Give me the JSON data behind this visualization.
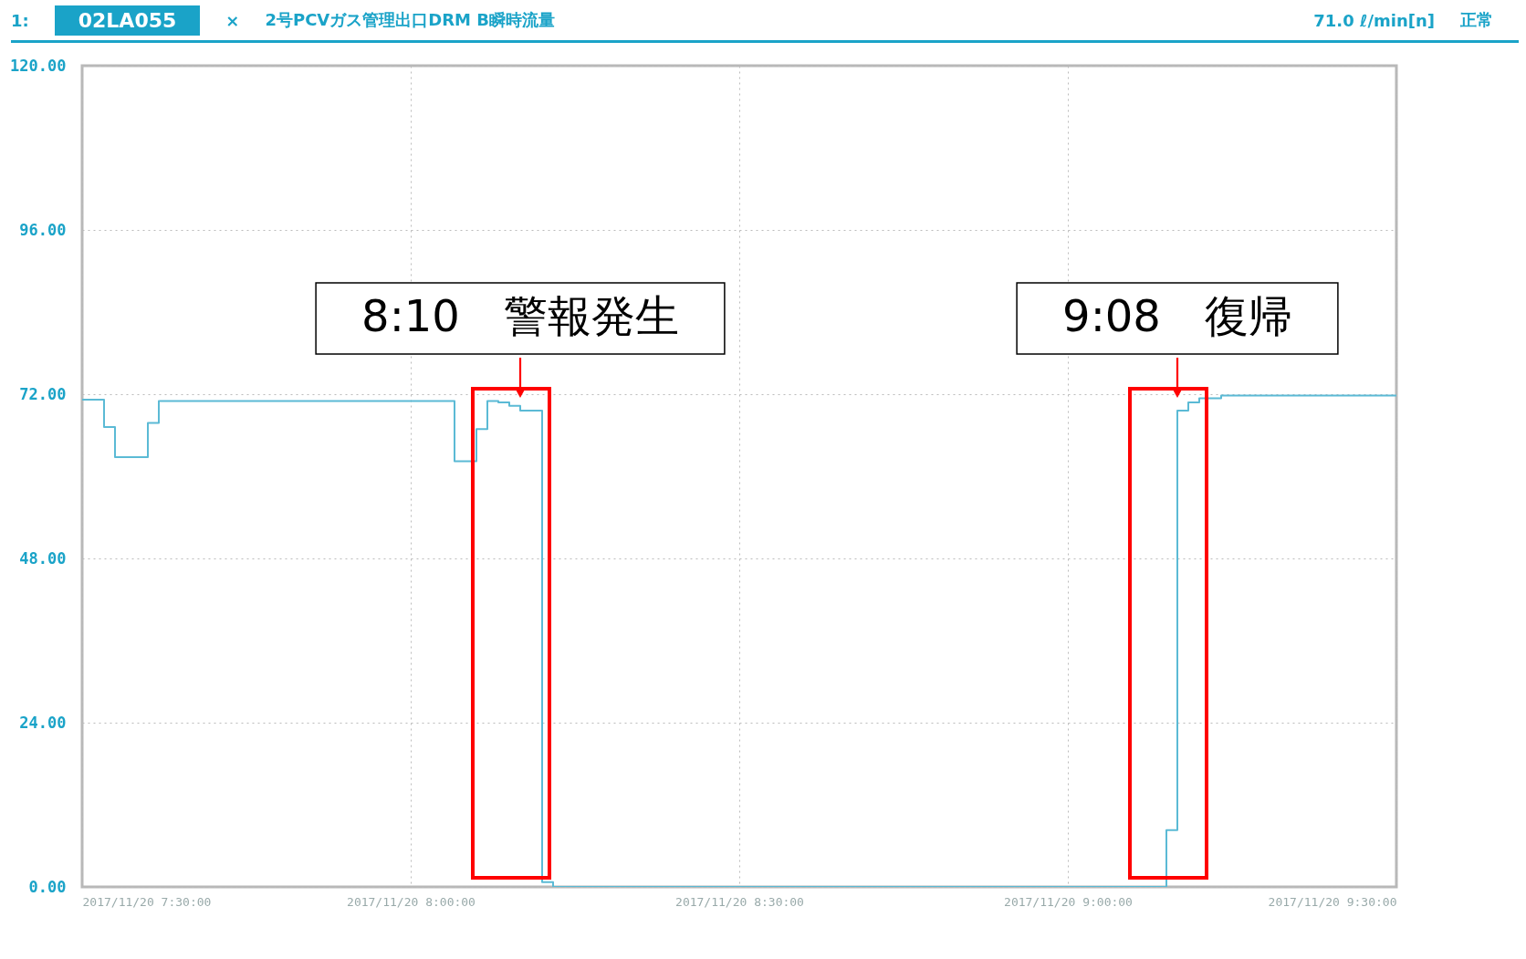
{
  "chart_data": {
    "type": "step",
    "title": "2号PCVガス管理出口DRM B瞬時流量",
    "x": [
      "2017-11-20T07:30",
      "2017-11-20T07:32",
      "2017-11-20T07:33",
      "2017-11-20T07:36",
      "2017-11-20T07:37",
      "2017-11-20T08:04",
      "2017-11-20T08:06",
      "2017-11-20T08:07",
      "2017-11-20T08:08",
      "2017-11-20T08:09",
      "2017-11-20T08:10",
      "2017-11-20T08:12",
      "2017-11-20T08:13",
      "2017-11-20T09:09",
      "2017-11-20T09:10",
      "2017-11-20T09:11",
      "2017-11-20T09:12",
      "2017-11-20T09:14",
      "2017-11-20T09:30"
    ],
    "series": [
      {
        "color": "#5bbad5",
        "values": [
          71.2,
          67.2,
          62.8,
          67.8,
          71.0,
          62.2,
          66.9,
          71.0,
          70.8,
          70.3,
          69.6,
          0.7,
          0,
          8.3,
          69.6,
          70.8,
          71.4,
          71.8,
          71.8
        ]
      }
    ],
    "xlim": [
      "2017-11-20T07:30",
      "2017-11-20T09:30"
    ],
    "xticks": [
      {
        "value": "2017-11-20T07:30",
        "label": "2017/11/20 7:30:00"
      },
      {
        "value": "2017-11-20T08:00",
        "label": "2017/11/20 8:00:00"
      },
      {
        "value": "2017-11-20T08:30",
        "label": "2017/11/20 8:30:00"
      },
      {
        "value": "2017-11-20T09:00",
        "label": "2017/11/20 9:00:00"
      },
      {
        "value": "2017-11-20T09:30",
        "label": "2017/11/20 9:30:00"
      }
    ],
    "ylim": [
      0,
      120
    ],
    "yticks": [
      {
        "value": 0,
        "label": "0.00"
      },
      {
        "value": 24,
        "label": "24.00"
      },
      {
        "value": 48,
        "label": "48.00"
      },
      {
        "value": 72,
        "label": "72.00"
      },
      {
        "value": 96,
        "label": "96.00"
      },
      {
        "value": 120,
        "label": "120.00"
      }
    ],
    "grid": true,
    "annotations": [
      "1:",
      "02LA055",
      "×",
      "71.0 ℓ/min[n]",
      "正常",
      {
        "text": "8:10　警報発生",
        "x": "2017-11-20T08:10",
        "y": 69.6
      },
      {
        "text": "9:08　復帰",
        "x": "2017-11-20T09:10",
        "y": 69.6
      }
    ]
  }
}
